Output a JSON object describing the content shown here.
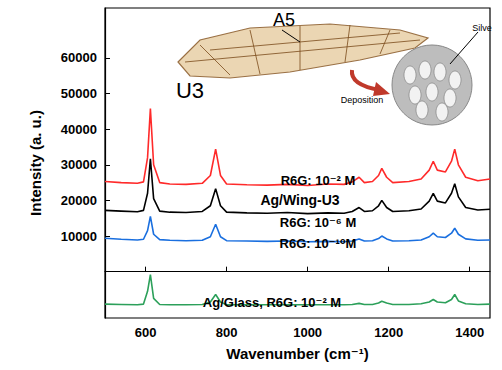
{
  "chart_data": {
    "type": "line",
    "x_label": "Wavenumber (cm⁻¹)",
    "y_label": "Intensity (a. u.)",
    "x": [
      500,
      540,
      580,
      595,
      605,
      612,
      620,
      635,
      660,
      700,
      740,
      760,
      773,
      785,
      800,
      850,
      900,
      950,
      1000,
      1050,
      1090,
      1110,
      1127,
      1140,
      1160,
      1175,
      1183,
      1195,
      1210,
      1250,
      1280,
      1300,
      1310,
      1320,
      1340,
      1355,
      1363,
      1372,
      1390,
      1420,
      1450
    ],
    "series": [
      {
        "name": "R6G: 10⁻² M",
        "color": "#ff2a2a",
        "values": [
          25300,
          25000,
          24800,
          25200,
          32000,
          45800,
          30000,
          25000,
          24600,
          24500,
          24800,
          27000,
          34400,
          27000,
          24600,
          24400,
          24300,
          24500,
          24200,
          24600,
          24500,
          25200,
          26500,
          25000,
          25300,
          27000,
          29000,
          26500,
          25000,
          25300,
          26000,
          28500,
          31000,
          28500,
          28000,
          31000,
          34400,
          30000,
          26500,
          25500,
          26000
        ]
      },
      {
        "name": "R6G: 10⁻⁶ M",
        "color": "#000000",
        "values": [
          17200,
          17000,
          16800,
          17200,
          22000,
          31700,
          20500,
          17000,
          16700,
          16600,
          16900,
          18500,
          23300,
          18500,
          16700,
          16500,
          16400,
          16600,
          16300,
          16500,
          16400,
          16900,
          18000,
          16900,
          17100,
          18500,
          20000,
          18000,
          16900,
          17100,
          17600,
          19800,
          22000,
          19800,
          19300,
          22000,
          24700,
          21000,
          18000,
          17300,
          17500
        ]
      },
      {
        "name": "R6G: 10⁻¹⁰M",
        "color": "#1a6fdf",
        "values": [
          9400,
          9100,
          8900,
          9100,
          11500,
          15500,
          10500,
          9000,
          8800,
          8700,
          8800,
          9800,
          13300,
          9800,
          8700,
          8600,
          8500,
          8600,
          8400,
          8500,
          8400,
          8600,
          9200,
          8600,
          8700,
          9300,
          10000,
          9200,
          8600,
          8700,
          8900,
          9800,
          10800,
          9800,
          9600,
          10800,
          12200,
          10500,
          9200,
          8800,
          8900
        ]
      },
      {
        "name": "Ag/Glass, R6G: 10⁻² M",
        "color": "#2ca05a",
        "values": [
          -9100,
          -9200,
          -9300,
          -9100,
          -5500,
          -800,
          -7500,
          -9200,
          -9300,
          -9300,
          -9200,
          -8500,
          -6400,
          -8500,
          -9300,
          -9300,
          -9300,
          -9300,
          -9300,
          -9300,
          -9300,
          -9200,
          -8900,
          -9200,
          -9200,
          -8800,
          -8300,
          -8800,
          -9200,
          -9200,
          -9000,
          -8500,
          -7800,
          -8500,
          -8700,
          -7800,
          -6400,
          -8200,
          -9000,
          -9200,
          -9100
        ]
      }
    ],
    "annotations": [
      "Ag/Wing-U3",
      "U3",
      "A5",
      "Deposition",
      "Silve"
    ],
    "xlim": [
      500,
      1450
    ],
    "xticks": [
      600,
      800,
      1000,
      1200,
      1400
    ],
    "ylim": [
      -13000,
      74000
    ],
    "yticks": [
      10000,
      20000,
      30000,
      40000,
      50000,
      60000
    ],
    "grid": false
  }
}
